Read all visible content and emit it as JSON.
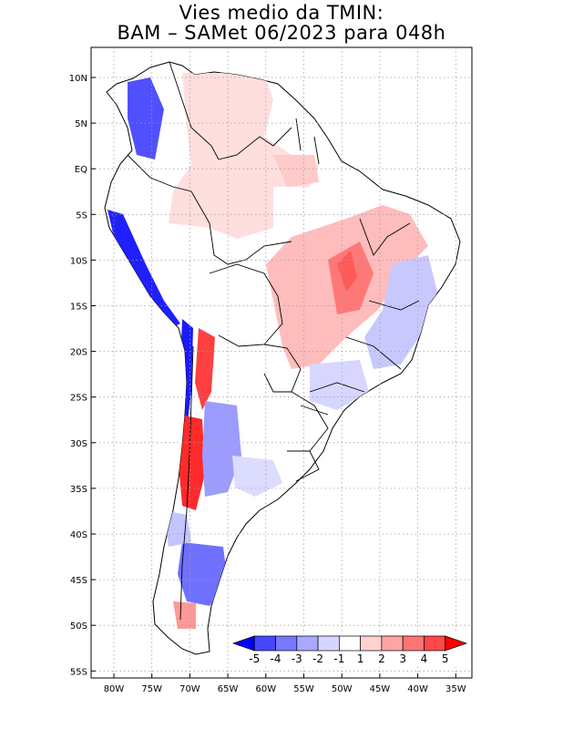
{
  "title_line1": "Vies medio da TMIN:",
  "title_line2": "BAM – SAMet 06/2023  para 048h",
  "lat_labels": [
    "10N",
    "5N",
    "EQ",
    "5S",
    "10S",
    "15S",
    "20S",
    "25S",
    "30S",
    "35S",
    "40S",
    "45S",
    "50S",
    "55S"
  ],
  "lon_labels": [
    "80W",
    "75W",
    "70W",
    "65W",
    "60W",
    "55W",
    "50W",
    "45W",
    "40W",
    "35W"
  ],
  "colorbar": {
    "labels": [
      "-5",
      "-4",
      "-3",
      "-2",
      "-1",
      "1",
      "2",
      "3",
      "4",
      "5"
    ],
    "colors": [
      "#0000ff",
      "#4646ff",
      "#7878ff",
      "#a8a8ff",
      "#d6d6ff",
      "#ffffff",
      "#ffd2d2",
      "#ffa4a4",
      "#ff7474",
      "#ff4848",
      "#ff0000"
    ]
  },
  "colors": {
    "land": "#ffffff",
    "border": "#000000",
    "grid": "#a0a0a0",
    "strong_warm": "#ff2020",
    "warm": "#ff9c9c",
    "light_warm": "#ffd6d6",
    "light_cool": "#d4d4ff",
    "cool": "#8080ff",
    "strong_cool": "#1818ff"
  }
}
